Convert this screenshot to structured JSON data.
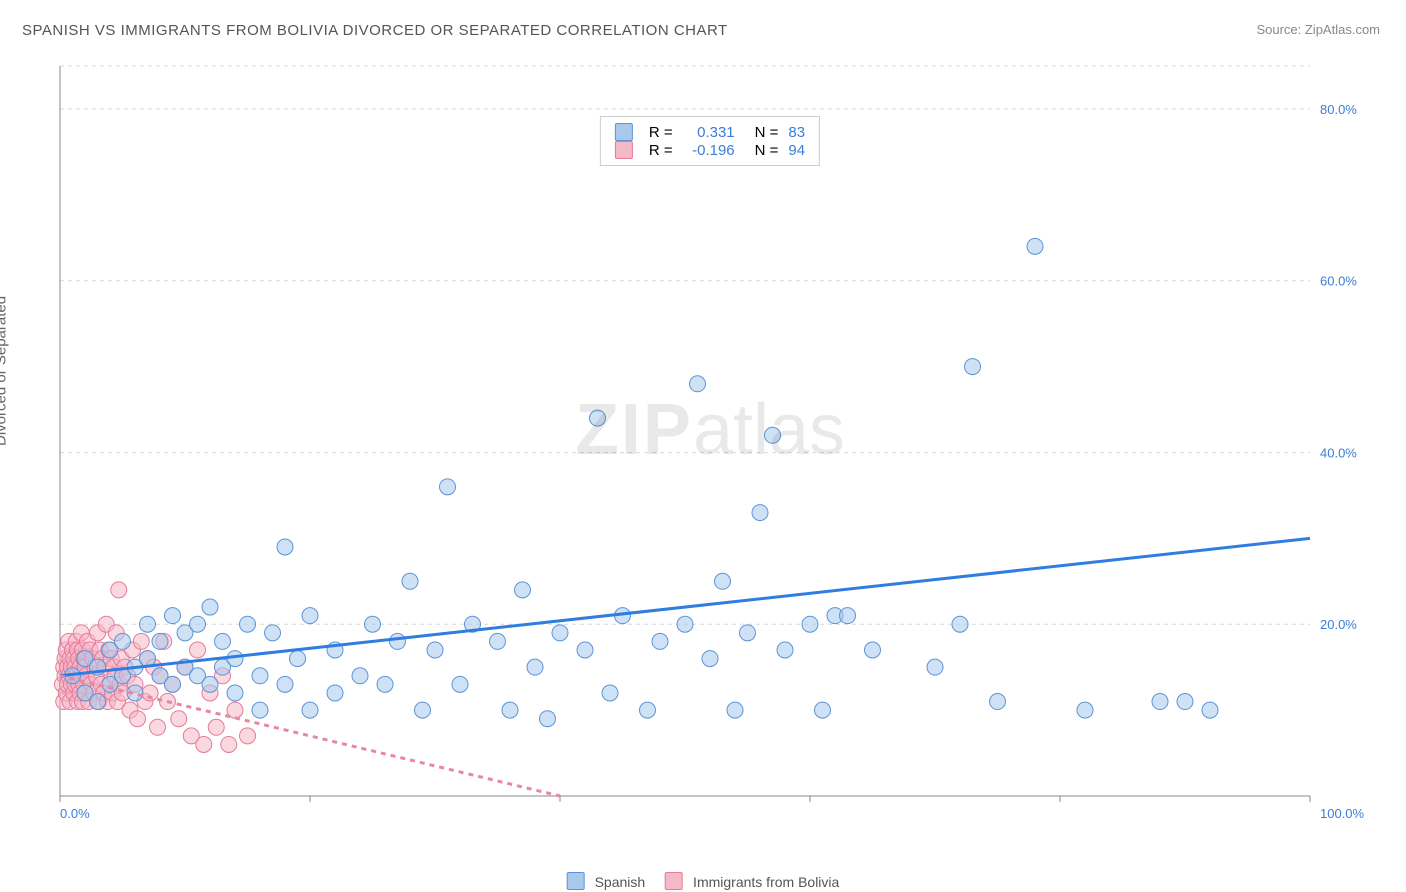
{
  "title": "SPANISH VS IMMIGRANTS FROM BOLIVIA DIVORCED OR SEPARATED CORRELATION CHART",
  "source": "Source: ZipAtlas.com",
  "ylabel": "Divorced or Separated",
  "watermark": "ZIPatlas",
  "chart": {
    "type": "scatter",
    "background_color": "#ffffff",
    "grid_color": "#d9d9d9",
    "axis_color": "#888888",
    "xlim": [
      0,
      100
    ],
    "ylim": [
      0,
      85
    ],
    "x_ticks": [
      0,
      20,
      40,
      60,
      80,
      100
    ],
    "y_ticks": [
      20,
      40,
      60,
      80
    ],
    "x_axis_label_left": "0.0%",
    "x_axis_label_right": "100.0%",
    "y_tick_labels": [
      "20.0%",
      "40.0%",
      "60.0%",
      "80.0%"
    ],
    "marker_radius": 8,
    "marker_opacity": 0.55,
    "line_width": 3,
    "series": [
      {
        "name": "Spanish",
        "color_fill": "#a8c8ec",
        "color_stroke": "#5b94d6",
        "line_color": "#2f7de0",
        "line_dash": "0",
        "r_label": "R =",
        "r_value": "0.331",
        "n_label": "N =",
        "n_value": "83",
        "trend": {
          "x1": 0,
          "y1": 14,
          "x2": 100,
          "y2": 30
        },
        "points": [
          [
            1,
            14
          ],
          [
            2,
            16
          ],
          [
            2,
            12
          ],
          [
            3,
            15
          ],
          [
            3,
            11
          ],
          [
            4,
            13
          ],
          [
            4,
            17
          ],
          [
            5,
            14
          ],
          [
            5,
            18
          ],
          [
            6,
            15
          ],
          [
            6,
            12
          ],
          [
            7,
            16
          ],
          [
            7,
            20
          ],
          [
            8,
            14
          ],
          [
            8,
            18
          ],
          [
            9,
            13
          ],
          [
            9,
            21
          ],
          [
            10,
            15
          ],
          [
            10,
            19
          ],
          [
            11,
            14
          ],
          [
            11,
            20
          ],
          [
            12,
            13
          ],
          [
            12,
            22
          ],
          [
            13,
            18
          ],
          [
            13,
            15
          ],
          [
            14,
            16
          ],
          [
            14,
            12
          ],
          [
            15,
            20
          ],
          [
            16,
            14
          ],
          [
            16,
            10
          ],
          [
            17,
            19
          ],
          [
            18,
            29
          ],
          [
            18,
            13
          ],
          [
            19,
            16
          ],
          [
            20,
            21
          ],
          [
            20,
            10
          ],
          [
            22,
            17
          ],
          [
            22,
            12
          ],
          [
            24,
            14
          ],
          [
            25,
            20
          ],
          [
            26,
            13
          ],
          [
            27,
            18
          ],
          [
            28,
            25
          ],
          [
            29,
            10
          ],
          [
            30,
            17
          ],
          [
            31,
            36
          ],
          [
            32,
            13
          ],
          [
            33,
            20
          ],
          [
            35,
            18
          ],
          [
            36,
            10
          ],
          [
            37,
            24
          ],
          [
            38,
            15
          ],
          [
            39,
            9
          ],
          [
            40,
            19
          ],
          [
            42,
            17
          ],
          [
            43,
            44
          ],
          [
            44,
            12
          ],
          [
            45,
            21
          ],
          [
            47,
            10
          ],
          [
            48,
            18
          ],
          [
            50,
            20
          ],
          [
            51,
            48
          ],
          [
            52,
            16
          ],
          [
            53,
            25
          ],
          [
            54,
            10
          ],
          [
            55,
            19
          ],
          [
            56,
            33
          ],
          [
            57,
            42
          ],
          [
            58,
            17
          ],
          [
            60,
            20
          ],
          [
            61,
            10
          ],
          [
            62,
            21
          ],
          [
            63,
            21
          ],
          [
            65,
            17
          ],
          [
            70,
            15
          ],
          [
            72,
            20
          ],
          [
            73,
            50
          ],
          [
            75,
            11
          ],
          [
            78,
            64
          ],
          [
            82,
            10
          ],
          [
            88,
            11
          ],
          [
            90,
            11
          ],
          [
            92,
            10
          ]
        ]
      },
      {
        "name": "Immigrants from Bolivia",
        "color_fill": "#f5b8c6",
        "color_stroke": "#e57a9b",
        "line_color": "#e985a5",
        "line_dash": "5,5",
        "r_label": "R =",
        "r_value": "-0.196",
        "n_label": "N =",
        "n_value": "94",
        "trend": {
          "x1": 0,
          "y1": 14,
          "x2": 40,
          "y2": 0
        },
        "points": [
          [
            0.2,
            13
          ],
          [
            0.3,
            15
          ],
          [
            0.3,
            11
          ],
          [
            0.4,
            14
          ],
          [
            0.4,
            16
          ],
          [
            0.5,
            12
          ],
          [
            0.5,
            17
          ],
          [
            0.6,
            13
          ],
          [
            0.6,
            15
          ],
          [
            0.7,
            14
          ],
          [
            0.7,
            18
          ],
          [
            0.8,
            11
          ],
          [
            0.8,
            16
          ],
          [
            0.9,
            13
          ],
          [
            0.9,
            15
          ],
          [
            1.0,
            14
          ],
          [
            1.0,
            17
          ],
          [
            1.1,
            12
          ],
          [
            1.1,
            16
          ],
          [
            1.2,
            13
          ],
          [
            1.2,
            15
          ],
          [
            1.3,
            14
          ],
          [
            1.3,
            18
          ],
          [
            1.4,
            11
          ],
          [
            1.4,
            17
          ],
          [
            1.5,
            13
          ],
          [
            1.5,
            16
          ],
          [
            1.6,
            12
          ],
          [
            1.6,
            15
          ],
          [
            1.7,
            14
          ],
          [
            1.7,
            19
          ],
          [
            1.8,
            11
          ],
          [
            1.8,
            17
          ],
          [
            1.9,
            13
          ],
          [
            1.9,
            16
          ],
          [
            2.0,
            12
          ],
          [
            2.0,
            15
          ],
          [
            2.1,
            14
          ],
          [
            2.2,
            18
          ],
          [
            2.3,
            11
          ],
          [
            2.4,
            17
          ],
          [
            2.5,
            13
          ],
          [
            2.6,
            16
          ],
          [
            2.7,
            12
          ],
          [
            2.8,
            15
          ],
          [
            2.9,
            14
          ],
          [
            3.0,
            19
          ],
          [
            3.1,
            11
          ],
          [
            3.2,
            17
          ],
          [
            3.3,
            13
          ],
          [
            3.4,
            16
          ],
          [
            3.5,
            12
          ],
          [
            3.6,
            15
          ],
          [
            3.7,
            20
          ],
          [
            3.8,
            11
          ],
          [
            3.9,
            17
          ],
          [
            4.0,
            13
          ],
          [
            4.1,
            16
          ],
          [
            4.2,
            12
          ],
          [
            4.3,
            15
          ],
          [
            4.4,
            14
          ],
          [
            4.5,
            19
          ],
          [
            4.6,
            11
          ],
          [
            4.7,
            24
          ],
          [
            4.8,
            13
          ],
          [
            4.9,
            16
          ],
          [
            5.0,
            12
          ],
          [
            5.2,
            15
          ],
          [
            5.4,
            14
          ],
          [
            5.6,
            10
          ],
          [
            5.8,
            17
          ],
          [
            6.0,
            13
          ],
          [
            6.2,
            9
          ],
          [
            6.5,
            18
          ],
          [
            6.8,
            11
          ],
          [
            7.0,
            16
          ],
          [
            7.2,
            12
          ],
          [
            7.5,
            15
          ],
          [
            7.8,
            8
          ],
          [
            8.0,
            14
          ],
          [
            8.3,
            18
          ],
          [
            8.6,
            11
          ],
          [
            9.0,
            13
          ],
          [
            9.5,
            9
          ],
          [
            10.0,
            15
          ],
          [
            10.5,
            7
          ],
          [
            11.0,
            17
          ],
          [
            11.5,
            6
          ],
          [
            12.0,
            12
          ],
          [
            12.5,
            8
          ],
          [
            13.0,
            14
          ],
          [
            13.5,
            6
          ],
          [
            14.0,
            10
          ],
          [
            15.0,
            7
          ]
        ]
      }
    ],
    "legend": {
      "items": [
        {
          "label": "Spanish",
          "fill": "#a8c8ec",
          "stroke": "#5b94d6"
        },
        {
          "label": "Immigrants from Bolivia",
          "fill": "#f5b8c6",
          "stroke": "#e57a9b"
        }
      ]
    }
  }
}
